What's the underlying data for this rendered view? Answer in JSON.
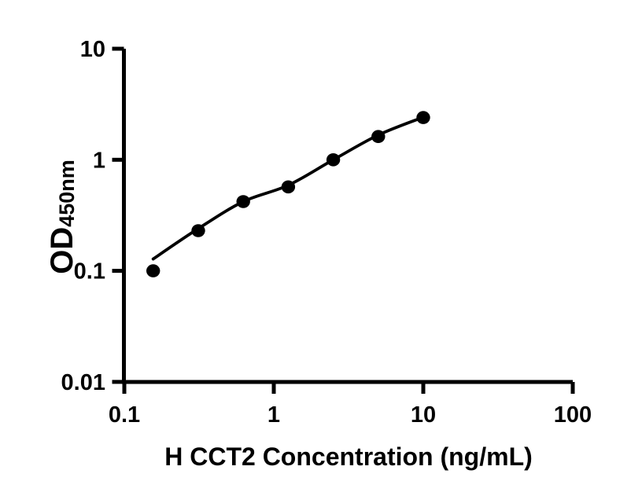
{
  "figure": {
    "background": "#ffffff",
    "ink_color": "#000000"
  },
  "chart_data": {
    "type": "scatter",
    "title": "",
    "xlabel": "H CCT2 Concentration (ng/mL)",
    "ylabel_main": "OD",
    "ylabel_sub": "450nm",
    "xscale": "log",
    "yscale": "log",
    "xlim": [
      0.1,
      100
    ],
    "ylim": [
      0.01,
      10
    ],
    "grid": false,
    "legend": "none",
    "x_tick_values": [
      0.1,
      1,
      10,
      100
    ],
    "x_tick_labels": [
      "0.1",
      "1",
      "10",
      "100"
    ],
    "y_tick_values": [
      10,
      1,
      0.1,
      0.01
    ],
    "y_tick_labels": [
      "10",
      "1",
      "0.1",
      "0.01"
    ],
    "series": [
      {
        "name": "standard-points",
        "type": "scatter",
        "marker": "filled-circle",
        "color": "#000000",
        "x": [
          0.156,
          0.3125,
          0.625,
          1.25,
          2.5,
          5,
          10
        ],
        "y": [
          0.1,
          0.23,
          0.42,
          0.57,
          1.0,
          1.62,
          2.4
        ]
      },
      {
        "name": "fit-line",
        "type": "line",
        "color": "#000000",
        "x": [
          0.156,
          0.3125,
          0.625,
          1.25,
          2.5,
          5,
          10
        ],
        "y": [
          0.128,
          0.24,
          0.42,
          0.59,
          1.0,
          1.67,
          2.42
        ]
      }
    ]
  }
}
